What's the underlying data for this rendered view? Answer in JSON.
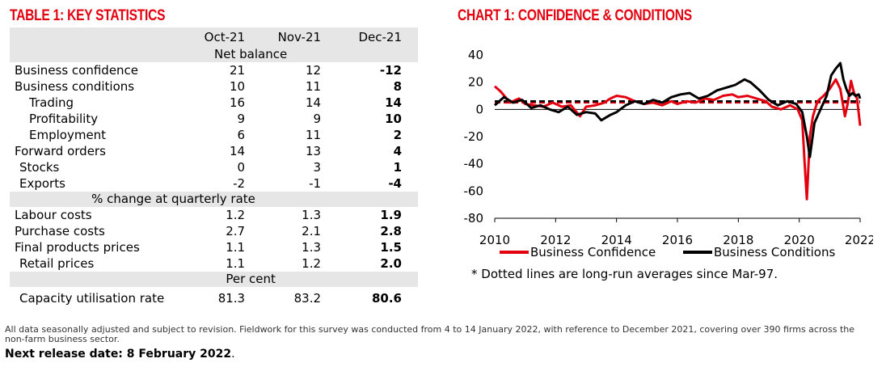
{
  "table": {
    "title": "TABLE 1: KEY STATISTICS",
    "columns": [
      "Oct-21",
      "Nov-21",
      "Dec-21"
    ],
    "sections": [
      {
        "label": "Net balance",
        "rows": [
          {
            "name": "Business confidence",
            "values": [
              "21",
              "12",
              "-12"
            ]
          },
          {
            "name": "Business conditions",
            "values": [
              "10",
              "11",
              "8"
            ]
          },
          {
            "name": "Trading",
            "values": [
              "16",
              "14",
              "14"
            ]
          },
          {
            "name": "Profitability",
            "values": [
              "9",
              "9",
              "10"
            ]
          },
          {
            "name": "Employment",
            "values": [
              "6",
              "11",
              "2"
            ]
          },
          {
            "name": "Forward orders",
            "values": [
              "14",
              "13",
              "4"
            ]
          },
          {
            "name": "Stocks",
            "values": [
              "0",
              "3",
              "1"
            ]
          },
          {
            "name": "Exports",
            "values": [
              "-2",
              "-1",
              "-4"
            ]
          }
        ]
      },
      {
        "label": "% change at quarterly rate",
        "rows": [
          {
            "name": "Labour costs",
            "values": [
              "1.2",
              "1.3",
              "1.9"
            ]
          },
          {
            "name": "Purchase costs",
            "values": [
              "2.7",
              "2.1",
              "2.8"
            ]
          },
          {
            "name": "Final products prices",
            "values": [
              "1.1",
              "1.3",
              "1.5"
            ]
          },
          {
            "name": "Retail prices",
            "values": [
              "1.1",
              "1.2",
              "2.0"
            ]
          }
        ]
      },
      {
        "label": "Per cent",
        "rows": [
          {
            "name": "Capacity utilisation rate",
            "values": [
              "81.3",
              "83.2",
              "80.6"
            ]
          }
        ]
      }
    ]
  },
  "chart_data": {
    "type": "line",
    "title": "CHART 1: CONFIDENCE & CONDITIONS",
    "xlim": [
      2010,
      2022
    ],
    "ylim": [
      -80,
      40
    ],
    "xticks": [
      2010,
      2012,
      2014,
      2016,
      2018,
      2020,
      2022
    ],
    "yticks": [
      40,
      20,
      0,
      -20,
      -40,
      -60,
      -80
    ],
    "colors": {
      "confidence": "#e3000f",
      "conditions": "#000000"
    },
    "series": [
      {
        "name": "Business Confidence",
        "color": "#e3000f",
        "x": [
          2010.0,
          2010.2,
          2010.5,
          2010.8,
          2011.0,
          2011.3,
          2011.6,
          2011.9,
          2012.2,
          2012.5,
          2012.8,
          2013.0,
          2013.3,
          2013.6,
          2013.8,
          2014.0,
          2014.3,
          2014.6,
          2014.9,
          2015.2,
          2015.5,
          2015.8,
          2016.0,
          2016.3,
          2016.6,
          2016.9,
          2017.2,
          2017.5,
          2017.8,
          2018.0,
          2018.3,
          2018.6,
          2018.9,
          2019.1,
          2019.4,
          2019.7,
          2019.95,
          2020.1,
          2020.18,
          2020.25,
          2020.35,
          2020.45,
          2020.6,
          2020.8,
          2021.0,
          2021.2,
          2021.35,
          2021.5,
          2021.6,
          2021.7,
          2021.8,
          2021.9,
          2022.0
        ],
        "values": [
          17,
          13,
          5,
          8,
          4,
          3,
          2,
          5,
          2,
          3,
          -5,
          2,
          3,
          5,
          8,
          10,
          9,
          6,
          4,
          5,
          3,
          6,
          4,
          6,
          5,
          8,
          7,
          10,
          11,
          9,
          10,
          8,
          6,
          2,
          0,
          3,
          0,
          -8,
          -40,
          -66,
          -20,
          -5,
          6,
          10,
          15,
          22,
          15,
          -5,
          5,
          21,
          12,
          8,
          -12
        ]
      },
      {
        "name": "Business Conditions",
        "color": "#000000",
        "x": [
          2010.0,
          2010.3,
          2010.6,
          2010.9,
          2011.2,
          2011.5,
          2011.8,
          2012.1,
          2012.4,
          2012.7,
          2013.0,
          2013.3,
          2013.5,
          2013.8,
          2014.0,
          2014.3,
          2014.6,
          2014.9,
          2015.2,
          2015.5,
          2015.8,
          2016.1,
          2016.4,
          2016.7,
          2017.0,
          2017.3,
          2017.6,
          2017.9,
          2018.2,
          2018.4,
          2018.7,
          2019.0,
          2019.3,
          2019.6,
          2019.9,
          2020.1,
          2020.25,
          2020.35,
          2020.5,
          2020.7,
          2020.9,
          2021.05,
          2021.2,
          2021.35,
          2021.45,
          2021.55,
          2021.65,
          2021.75,
          2021.85,
          2021.95,
          2022.0
        ],
        "values": [
          3,
          9,
          5,
          7,
          1,
          3,
          0,
          -2,
          2,
          -4,
          -2,
          -3,
          -8,
          -4,
          -2,
          3,
          6,
          4,
          7,
          5,
          9,
          11,
          12,
          8,
          10,
          14,
          16,
          18,
          22,
          20,
          14,
          7,
          3,
          6,
          4,
          -2,
          -20,
          -35,
          -10,
          0,
          10,
          25,
          30,
          34,
          22,
          15,
          10,
          12,
          10,
          11,
          8
        ]
      }
    ],
    "average_lines": [
      {
        "series": "Business Confidence",
        "value": 5
      },
      {
        "series": "Business Conditions",
        "value": 6
      }
    ],
    "legend": [
      "Business Confidence",
      "Business Conditions"
    ],
    "footnote": "* Dotted lines are long-run averages since Mar-97."
  },
  "notes": "All data seasonally adjusted and subject to revision. Fieldwork for this survey was conducted from 4 to 14 January 2022, with reference to December 2021, covering over 390 firms across the non-farm business sector.",
  "release": {
    "label": "Next release date: 8 February 2022",
    "suffix": "."
  }
}
